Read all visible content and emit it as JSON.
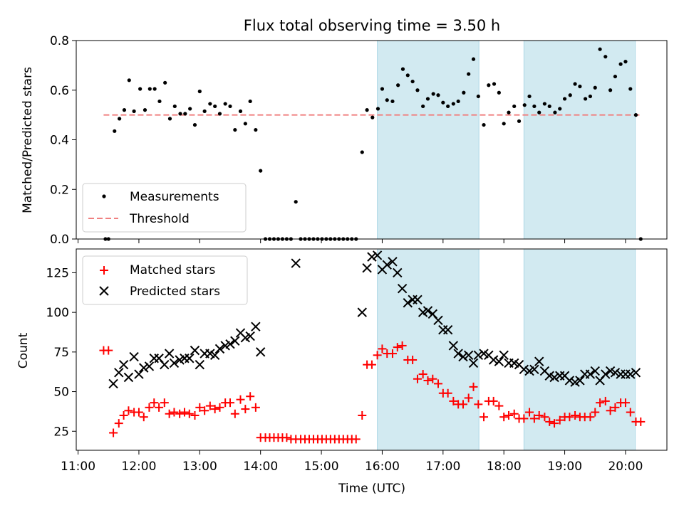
{
  "chart_data": {
    "title": "Flux total observing time = 3.50 h",
    "x_axis": {
      "label": "Time (UTC)",
      "ticks": [
        "11:00",
        "12:00",
        "13:00",
        "14:00",
        "15:00",
        "16:00",
        "17:00",
        "18:00",
        "19:00",
        "20:00"
      ],
      "range_hours": [
        10.97,
        20.68
      ]
    },
    "shaded_intervals": [
      {
        "start_h": 15.92,
        "end_h": 17.59
      },
      {
        "start_h": 18.33,
        "end_h": 20.16
      }
    ],
    "shade_color": "#add8e6",
    "top": {
      "type": "scatter",
      "ylabel": "Matched/Predicted stars",
      "ylim": [
        0,
        0.8
      ],
      "yticks": [
        "0.0",
        "0.2",
        "0.4",
        "0.6",
        "0.8"
      ],
      "threshold": 0.5,
      "threshold_color": "#f08080",
      "point_color": "#000000",
      "legend": [
        "Measurements",
        "Threshold"
      ],
      "measurements": [
        [
          11.45,
          0.0
        ],
        [
          11.5,
          0.0
        ],
        [
          11.6,
          0.435
        ],
        [
          11.68,
          0.485
        ],
        [
          11.76,
          0.52
        ],
        [
          11.84,
          0.64
        ],
        [
          11.92,
          0.515
        ],
        [
          12.02,
          0.605
        ],
        [
          12.1,
          0.52
        ],
        [
          12.18,
          0.605
        ],
        [
          12.26,
          0.605
        ],
        [
          12.34,
          0.555
        ],
        [
          12.43,
          0.63
        ],
        [
          12.51,
          0.485
        ],
        [
          12.59,
          0.535
        ],
        [
          12.68,
          0.505
        ],
        [
          12.76,
          0.505
        ],
        [
          12.84,
          0.525
        ],
        [
          12.92,
          0.46
        ],
        [
          13.0,
          0.595
        ],
        [
          13.08,
          0.515
        ],
        [
          13.17,
          0.545
        ],
        [
          13.25,
          0.535
        ],
        [
          13.33,
          0.505
        ],
        [
          13.42,
          0.545
        ],
        [
          13.5,
          0.535
        ],
        [
          13.58,
          0.44
        ],
        [
          13.67,
          0.515
        ],
        [
          13.75,
          0.465
        ],
        [
          13.83,
          0.555
        ],
        [
          13.92,
          0.44
        ],
        [
          14.0,
          0.275
        ],
        [
          14.08,
          0.0
        ],
        [
          14.15,
          0.0
        ],
        [
          14.22,
          0.0
        ],
        [
          14.29,
          0.0
        ],
        [
          14.36,
          0.0
        ],
        [
          14.43,
          0.0
        ],
        [
          14.5,
          0.0
        ],
        [
          14.58,
          0.15
        ],
        [
          14.66,
          0.0
        ],
        [
          14.73,
          0.0
        ],
        [
          14.8,
          0.0
        ],
        [
          14.87,
          0.0
        ],
        [
          14.94,
          0.0
        ],
        [
          15.01,
          0.0
        ],
        [
          15.08,
          0.0
        ],
        [
          15.15,
          0.0
        ],
        [
          15.22,
          0.0
        ],
        [
          15.29,
          0.0
        ],
        [
          15.36,
          0.0
        ],
        [
          15.43,
          0.0
        ],
        [
          15.5,
          0.0
        ],
        [
          15.57,
          0.0
        ],
        [
          15.67,
          0.35
        ],
        [
          15.75,
          0.52
        ],
        [
          15.84,
          0.49
        ],
        [
          15.93,
          0.525
        ],
        [
          16.0,
          0.605
        ],
        [
          16.08,
          0.56
        ],
        [
          16.17,
          0.555
        ],
        [
          16.26,
          0.62
        ],
        [
          16.34,
          0.685
        ],
        [
          16.42,
          0.66
        ],
        [
          16.5,
          0.635
        ],
        [
          16.58,
          0.6
        ],
        [
          16.67,
          0.535
        ],
        [
          16.75,
          0.565
        ],
        [
          16.84,
          0.585
        ],
        [
          16.92,
          0.58
        ],
        [
          17.0,
          0.55
        ],
        [
          17.08,
          0.535
        ],
        [
          17.17,
          0.545
        ],
        [
          17.25,
          0.555
        ],
        [
          17.34,
          0.59
        ],
        [
          17.42,
          0.665
        ],
        [
          17.5,
          0.725
        ],
        [
          17.58,
          0.575
        ],
        [
          17.67,
          0.46
        ],
        [
          17.75,
          0.62
        ],
        [
          17.84,
          0.625
        ],
        [
          17.92,
          0.59
        ],
        [
          18.0,
          0.465
        ],
        [
          18.08,
          0.51
        ],
        [
          18.17,
          0.535
        ],
        [
          18.25,
          0.475
        ],
        [
          18.34,
          0.54
        ],
        [
          18.42,
          0.575
        ],
        [
          18.5,
          0.535
        ],
        [
          18.58,
          0.51
        ],
        [
          18.67,
          0.545
        ],
        [
          18.75,
          0.535
        ],
        [
          18.84,
          0.51
        ],
        [
          18.92,
          0.525
        ],
        [
          19.0,
          0.565
        ],
        [
          19.09,
          0.58
        ],
        [
          19.17,
          0.625
        ],
        [
          19.25,
          0.615
        ],
        [
          19.34,
          0.565
        ],
        [
          19.42,
          0.575
        ],
        [
          19.5,
          0.61
        ],
        [
          19.58,
          0.765
        ],
        [
          19.67,
          0.735
        ],
        [
          19.75,
          0.6
        ],
        [
          19.83,
          0.655
        ],
        [
          19.92,
          0.705
        ],
        [
          20.0,
          0.715
        ],
        [
          20.08,
          0.605
        ],
        [
          20.17,
          0.5
        ],
        [
          20.25,
          0.0
        ]
      ]
    },
    "bottom": {
      "type": "scatter",
      "ylabel": "Count",
      "ylim": [
        13,
        140
      ],
      "yticks": [
        "25",
        "50",
        "75",
        "100",
        "125"
      ],
      "matched_color": "#ff0000",
      "predicted_color": "#000000",
      "legend": [
        "Matched stars",
        "Predicted stars"
      ],
      "matched": [
        [
          11.42,
          76
        ],
        [
          11.5,
          76
        ],
        [
          11.58,
          24
        ],
        [
          11.67,
          30
        ],
        [
          11.75,
          35
        ],
        [
          11.83,
          38
        ],
        [
          11.92,
          37
        ],
        [
          12.0,
          37
        ],
        [
          12.08,
          34
        ],
        [
          12.17,
          40
        ],
        [
          12.25,
          43
        ],
        [
          12.33,
          40
        ],
        [
          12.42,
          43
        ],
        [
          12.5,
          36
        ],
        [
          12.58,
          37
        ],
        [
          12.67,
          36
        ],
        [
          12.75,
          37
        ],
        [
          12.83,
          36
        ],
        [
          12.92,
          35
        ],
        [
          13.0,
          40
        ],
        [
          13.08,
          38
        ],
        [
          13.17,
          41
        ],
        [
          13.25,
          39
        ],
        [
          13.33,
          40
        ],
        [
          13.42,
          43
        ],
        [
          13.5,
          43
        ],
        [
          13.58,
          36
        ],
        [
          13.67,
          45
        ],
        [
          13.75,
          39
        ],
        [
          13.83,
          47
        ],
        [
          13.92,
          40
        ],
        [
          14.0,
          21
        ],
        [
          14.08,
          21
        ],
        [
          14.15,
          21
        ],
        [
          14.22,
          21
        ],
        [
          14.29,
          21
        ],
        [
          14.36,
          21
        ],
        [
          14.43,
          21
        ],
        [
          14.5,
          20
        ],
        [
          14.58,
          20
        ],
        [
          14.66,
          20
        ],
        [
          14.73,
          20
        ],
        [
          14.8,
          20
        ],
        [
          14.87,
          20
        ],
        [
          14.94,
          20
        ],
        [
          15.01,
          20
        ],
        [
          15.08,
          20
        ],
        [
          15.15,
          20
        ],
        [
          15.22,
          20
        ],
        [
          15.29,
          20
        ],
        [
          15.36,
          20
        ],
        [
          15.43,
          20
        ],
        [
          15.5,
          20
        ],
        [
          15.57,
          20
        ],
        [
          15.67,
          35
        ],
        [
          15.75,
          67
        ],
        [
          15.83,
          67
        ],
        [
          15.92,
          73
        ],
        [
          16.0,
          77
        ],
        [
          16.08,
          74
        ],
        [
          16.17,
          74
        ],
        [
          16.25,
          78
        ],
        [
          16.33,
          79
        ],
        [
          16.42,
          70
        ],
        [
          16.5,
          70
        ],
        [
          16.58,
          58
        ],
        [
          16.67,
          61
        ],
        [
          16.75,
          57
        ],
        [
          16.83,
          58
        ],
        [
          16.92,
          55
        ],
        [
          17.0,
          49
        ],
        [
          17.08,
          49
        ],
        [
          17.17,
          44
        ],
        [
          17.25,
          42
        ],
        [
          17.33,
          42
        ],
        [
          17.42,
          46
        ],
        [
          17.5,
          53
        ],
        [
          17.58,
          42
        ],
        [
          17.67,
          34
        ],
        [
          17.75,
          44
        ],
        [
          17.83,
          44
        ],
        [
          17.92,
          41
        ],
        [
          18.0,
          34
        ],
        [
          18.08,
          35
        ],
        [
          18.17,
          36
        ],
        [
          18.25,
          33
        ],
        [
          18.33,
          33
        ],
        [
          18.42,
          37
        ],
        [
          18.5,
          33
        ],
        [
          18.58,
          35
        ],
        [
          18.67,
          34
        ],
        [
          18.75,
          31
        ],
        [
          18.83,
          30
        ],
        [
          18.92,
          32
        ],
        [
          19.0,
          34
        ],
        [
          19.08,
          34
        ],
        [
          19.17,
          35
        ],
        [
          19.25,
          34
        ],
        [
          19.33,
          34
        ],
        [
          19.42,
          34
        ],
        [
          19.5,
          37
        ],
        [
          19.58,
          43
        ],
        [
          19.67,
          44
        ],
        [
          19.75,
          38
        ],
        [
          19.83,
          40
        ],
        [
          19.92,
          43
        ],
        [
          20.0,
          43
        ],
        [
          20.08,
          37
        ],
        [
          20.17,
          31
        ],
        [
          20.25,
          31
        ]
      ],
      "predicted": [
        [
          11.58,
          55
        ],
        [
          11.67,
          62
        ],
        [
          11.75,
          67
        ],
        [
          11.83,
          59
        ],
        [
          11.92,
          72
        ],
        [
          12.0,
          61
        ],
        [
          12.08,
          65
        ],
        [
          12.17,
          66
        ],
        [
          12.25,
          71
        ],
        [
          12.33,
          71
        ],
        [
          12.42,
          67
        ],
        [
          12.5,
          74
        ],
        [
          12.58,
          68
        ],
        [
          12.67,
          70
        ],
        [
          12.75,
          71
        ],
        [
          12.83,
          71
        ],
        [
          12.92,
          76
        ],
        [
          13.0,
          67
        ],
        [
          13.08,
          74
        ],
        [
          13.17,
          74
        ],
        [
          13.25,
          73
        ],
        [
          13.33,
          77
        ],
        [
          13.42,
          79
        ],
        [
          13.5,
          80
        ],
        [
          13.58,
          82
        ],
        [
          13.67,
          87
        ],
        [
          13.75,
          84
        ],
        [
          13.83,
          85
        ],
        [
          13.92,
          91
        ],
        [
          14.0,
          75
        ],
        [
          14.58,
          131
        ],
        [
          15.67,
          100
        ],
        [
          15.75,
          128
        ],
        [
          15.83,
          135
        ],
        [
          15.92,
          136
        ],
        [
          16.0,
          127
        ],
        [
          16.08,
          130
        ],
        [
          16.17,
          132
        ],
        [
          16.25,
          125
        ],
        [
          16.33,
          115
        ],
        [
          16.42,
          106
        ],
        [
          16.5,
          108
        ],
        [
          16.58,
          108
        ],
        [
          16.67,
          100
        ],
        [
          16.75,
          101
        ],
        [
          16.83,
          99
        ],
        [
          16.92,
          95
        ],
        [
          17.0,
          89
        ],
        [
          17.08,
          89
        ],
        [
          17.17,
          79
        ],
        [
          17.25,
          74
        ],
        [
          17.33,
          72
        ],
        [
          17.42,
          73
        ],
        [
          17.5,
          68
        ],
        [
          17.58,
          73
        ],
        [
          17.67,
          74
        ],
        [
          17.75,
          73
        ],
        [
          17.83,
          70
        ],
        [
          17.92,
          69
        ],
        [
          18.0,
          73
        ],
        [
          18.08,
          68
        ],
        [
          18.17,
          68
        ],
        [
          18.25,
          67
        ],
        [
          18.33,
          64
        ],
        [
          18.42,
          63
        ],
        [
          18.5,
          64
        ],
        [
          18.58,
          69
        ],
        [
          18.67,
          63
        ],
        [
          18.75,
          60
        ],
        [
          18.83,
          59
        ],
        [
          18.92,
          60
        ],
        [
          19.0,
          60
        ],
        [
          19.08,
          57
        ],
        [
          19.17,
          56
        ],
        [
          19.25,
          57
        ],
        [
          19.33,
          61
        ],
        [
          19.42,
          61
        ],
        [
          19.5,
          63
        ],
        [
          19.58,
          57
        ],
        [
          19.67,
          61
        ],
        [
          19.75,
          63
        ],
        [
          19.83,
          62
        ],
        [
          19.92,
          61
        ],
        [
          20.0,
          61
        ],
        [
          20.08,
          61
        ],
        [
          20.17,
          62
        ]
      ]
    }
  }
}
